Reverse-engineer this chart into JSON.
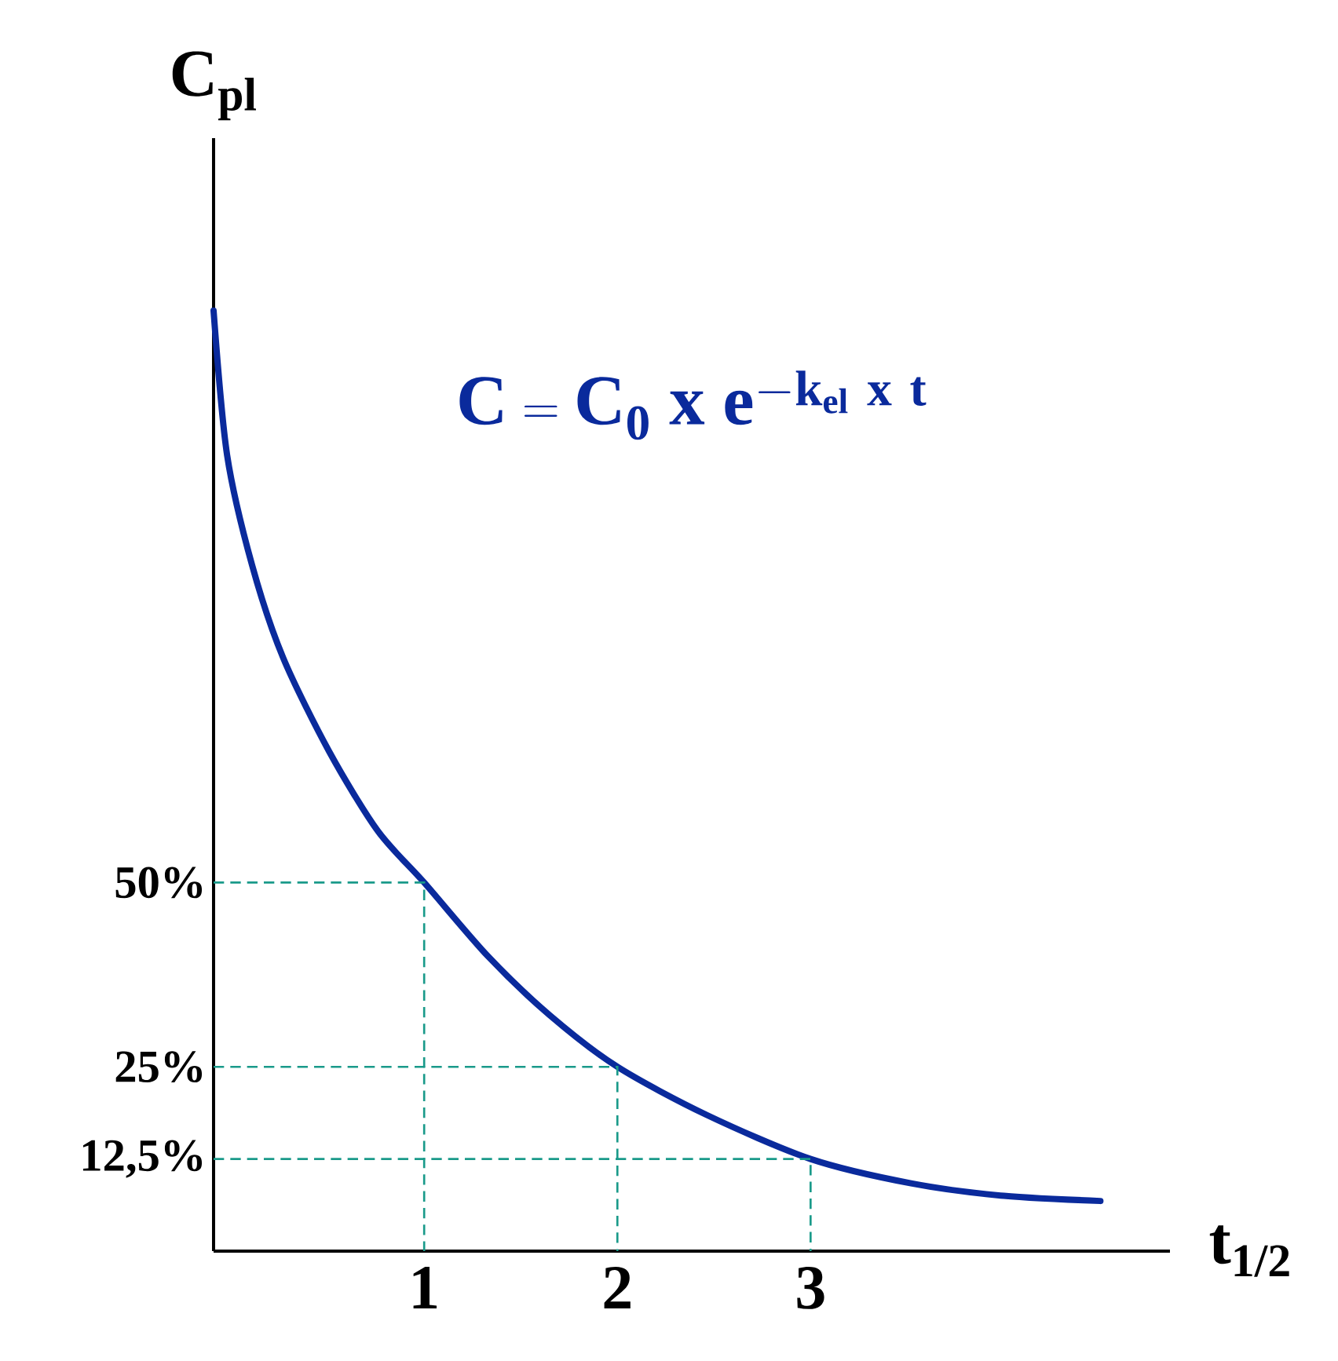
{
  "chart_data": {
    "type": "line",
    "xlabel": "t$_{1/2}$",
    "ylabel": "C$_{pl}$",
    "annotations": [
      "\\mathbf{C = C_{0}\\ x\\ e^{-k_{el}\\ x\\ t}}"
    ],
    "xlim": [
      -0.09,
      4.86
    ],
    "ylim": [
      0,
      151
    ],
    "xticks": [
      1,
      2,
      3
    ],
    "yticks": [
      {
        "value": 12.5,
        "label": "12,5%"
      },
      {
        "value": 25,
        "label": "25%"
      },
      {
        "value": 50,
        "label": "50%"
      }
    ],
    "grid": false,
    "series": [
      {
        "color": "#0a2a9c",
        "line_style": "solid",
        "x": [
          -0.09,
          -0.02,
          0.11,
          0.27,
          0.51,
          0.76,
          1.0,
          1.33,
          1.65,
          2.0,
          2.46,
          3.0,
          3.52,
          4.0,
          4.5
        ],
        "values": [
          127.6,
          108,
          93,
          80.5,
          67.7,
          57,
          50,
          40,
          32,
          25,
          18.5,
          12.5,
          9.2,
          7.5,
          6.8
        ]
      },
      {
        "color": "#1a9a8a",
        "line_style": "dashed",
        "x": [
          -0.09,
          1,
          1
        ],
        "values": [
          50,
          50,
          0
        ]
      },
      {
        "color": "#1a9a8a",
        "line_style": "dashed",
        "x": [
          -0.09,
          2,
          2
        ],
        "values": [
          25,
          25,
          0
        ]
      },
      {
        "color": "#1a9a8a",
        "line_style": "dashed",
        "x": [
          -0.09,
          3,
          3
        ],
        "values": [
          12.5,
          12.5,
          0
        ]
      }
    ]
  }
}
